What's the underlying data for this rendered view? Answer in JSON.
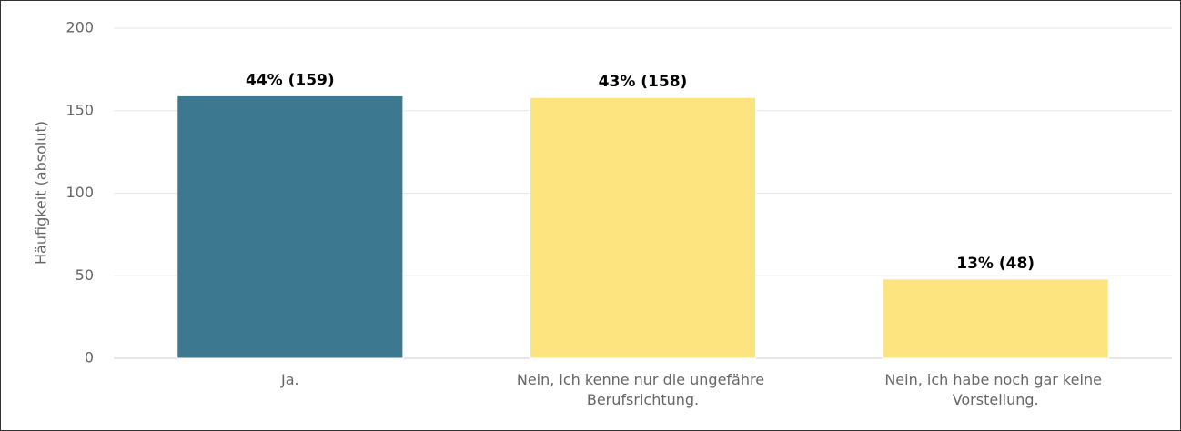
{
  "chart_data": {
    "type": "bar",
    "y_label": "Häufigkeit (absolut)",
    "categories": [
      "Ja.",
      "Nein, ich kenne nur die ungefähre Berufsrichtung.",
      "Nein, ich habe noch gar keine Vorstellung."
    ],
    "values": [
      159,
      158,
      48
    ],
    "value_labels": [
      "44% (159)",
      "43% (158)",
      "13% (48)"
    ],
    "colors": [
      "#3d7891",
      "#fde47f",
      "#fde47f"
    ],
    "ylim": [
      0,
      200
    ],
    "yticks": [
      0,
      50,
      100,
      150,
      200
    ],
    "grid": true
  }
}
